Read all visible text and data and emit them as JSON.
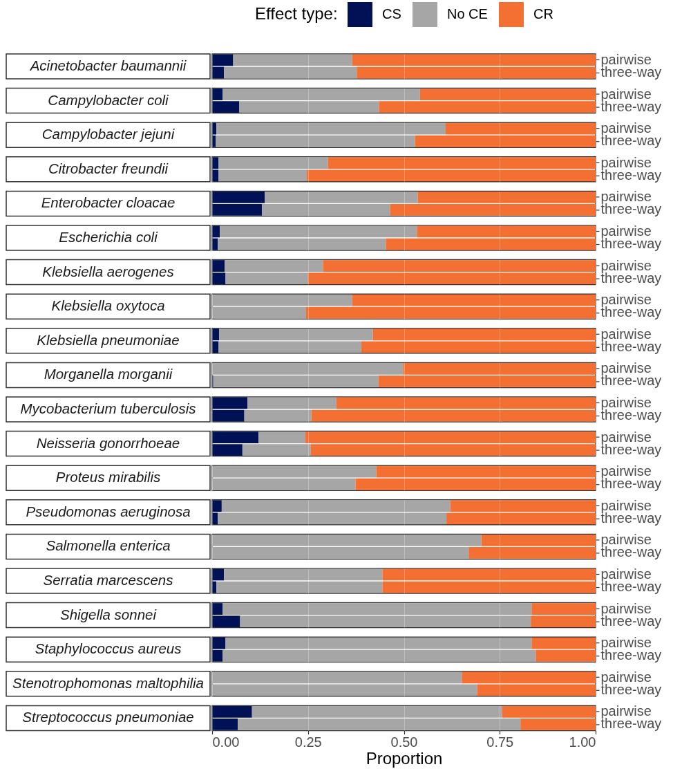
{
  "chart_data": [
    {
      "type": "bar",
      "orientation": "horizontal",
      "stacked": true,
      "title": "Acinetobacter baumannii",
      "categories": [
        "pairwise",
        "three-way"
      ],
      "series": [
        {
          "name": "CS",
          "color": "#001255",
          "values": [
            0.055,
            0.031
          ]
        },
        {
          "name": "No CE",
          "color": "#a6a6a6",
          "values": [
            0.31,
            0.346
          ]
        },
        {
          "name": "CR",
          "color": "#f36f32",
          "values": [
            0.635,
            0.623
          ]
        }
      ],
      "xlim": [
        0,
        1
      ],
      "xticks": [
        0,
        0.25,
        0.5,
        0.75,
        1
      ],
      "grid": "x",
      "tick_labels": "y",
      "legend": "top",
      "legend_title": "Effect type:"
    },
    {
      "type": "bar",
      "orientation": "horizontal",
      "stacked": true,
      "title": "Campylobacter coli",
      "categories": [
        "pairwise",
        "three-way"
      ],
      "series": [
        {
          "color": "#001255",
          "values": [
            0.027,
            0.071
          ]
        },
        {
          "color": "#a6a6a6",
          "values": [
            0.515,
            0.364
          ]
        },
        {
          "color": "#f36f32",
          "values": [
            0.458,
            0.565
          ]
        }
      ],
      "xlim": [
        0,
        1
      ],
      "xticks": [
        0,
        0.25,
        0.5,
        0.75,
        1
      ],
      "grid": "x",
      "tick_labels": "y"
    },
    {
      "type": "bar",
      "orientation": "horizontal",
      "stacked": true,
      "title": "Campylobacter jejuni",
      "categories": [
        "pairwise",
        "three-way"
      ],
      "series": [
        {
          "color": "#001255",
          "values": [
            0.011,
            0.009
          ]
        },
        {
          "color": "#a6a6a6",
          "values": [
            0.598,
            0.52
          ]
        },
        {
          "color": "#f36f32",
          "values": [
            0.391,
            0.471
          ]
        }
      ],
      "xlim": [
        0,
        1
      ],
      "xticks": [
        0,
        0.25,
        0.5,
        0.75,
        1
      ],
      "grid": "x",
      "tick_labels": "y"
    },
    {
      "type": "bar",
      "orientation": "horizontal",
      "stacked": true,
      "title": "Citrobacter freundii",
      "categories": [
        "pairwise",
        "three-way"
      ],
      "series": [
        {
          "color": "#001255",
          "values": [
            0.017,
            0.017
          ]
        },
        {
          "color": "#a6a6a6",
          "values": [
            0.285,
            0.23
          ]
        },
        {
          "color": "#f36f32",
          "values": [
            0.698,
            0.753
          ]
        }
      ],
      "xlim": [
        0,
        1
      ],
      "xticks": [
        0,
        0.25,
        0.5,
        0.75,
        1
      ],
      "grid": "x",
      "tick_labels": "y"
    },
    {
      "type": "bar",
      "orientation": "horizontal",
      "stacked": true,
      "title": "Enterobacter cloacae",
      "categories": [
        "pairwise",
        "three-way"
      ],
      "series": [
        {
          "color": "#001255",
          "values": [
            0.137,
            0.13
          ]
        },
        {
          "color": "#a6a6a6",
          "values": [
            0.399,
            0.334
          ]
        },
        {
          "color": "#f36f32",
          "values": [
            0.464,
            0.536
          ]
        }
      ],
      "xlim": [
        0,
        1
      ],
      "xticks": [
        0,
        0.25,
        0.5,
        0.75,
        1
      ],
      "grid": "x",
      "tick_labels": "y"
    },
    {
      "type": "bar",
      "orientation": "horizontal",
      "stacked": true,
      "title": "Escherichia coli",
      "categories": [
        "pairwise",
        "three-way"
      ],
      "series": [
        {
          "color": "#001255",
          "values": [
            0.02,
            0.015
          ]
        },
        {
          "color": "#a6a6a6",
          "values": [
            0.514,
            0.438
          ]
        },
        {
          "color": "#f36f32",
          "values": [
            0.466,
            0.547
          ]
        }
      ],
      "xlim": [
        0,
        1
      ],
      "xticks": [
        0,
        0.25,
        0.5,
        0.75,
        1
      ],
      "grid": "x",
      "tick_labels": "y"
    },
    {
      "type": "bar",
      "orientation": "horizontal",
      "stacked": true,
      "title": "Klebsiella aerogenes",
      "categories": [
        "pairwise",
        "three-way"
      ],
      "series": [
        {
          "color": "#001255",
          "values": [
            0.033,
            0.035
          ]
        },
        {
          "color": "#a6a6a6",
          "values": [
            0.256,
            0.215
          ]
        },
        {
          "color": "#f36f32",
          "values": [
            0.711,
            0.75
          ]
        }
      ],
      "xlim": [
        0,
        1
      ],
      "xticks": [
        0,
        0.25,
        0.5,
        0.75,
        1
      ],
      "grid": "x",
      "tick_labels": "y"
    },
    {
      "type": "bar",
      "orientation": "horizontal",
      "stacked": true,
      "title": "Klebsiella oxytoca",
      "categories": [
        "pairwise",
        "three-way"
      ],
      "series": [
        {
          "color": "#001255",
          "values": [
            0,
            0
          ]
        },
        {
          "color": "#a6a6a6",
          "values": [
            0.365,
            0.245
          ]
        },
        {
          "color": "#f36f32",
          "values": [
            0.635,
            0.755
          ]
        }
      ],
      "xlim": [
        0,
        1
      ],
      "xticks": [
        0,
        0.25,
        0.5,
        0.75,
        1
      ],
      "grid": "x",
      "tick_labels": "y"
    },
    {
      "type": "bar",
      "orientation": "horizontal",
      "stacked": true,
      "title": "Klebsiella pneumoniae",
      "categories": [
        "pairwise",
        "three-way"
      ],
      "series": [
        {
          "color": "#001255",
          "values": [
            0.018,
            0.017
          ]
        },
        {
          "color": "#a6a6a6",
          "values": [
            0.401,
            0.372
          ]
        },
        {
          "color": "#f36f32",
          "values": [
            0.581,
            0.611
          ]
        }
      ],
      "xlim": [
        0,
        1
      ],
      "xticks": [
        0,
        0.25,
        0.5,
        0.75,
        1
      ],
      "grid": "x",
      "tick_labels": "y"
    },
    {
      "type": "bar",
      "orientation": "horizontal",
      "stacked": true,
      "title": "Morganella morganii",
      "categories": [
        "pairwise",
        "three-way"
      ],
      "series": [
        {
          "color": "#001255",
          "values": [
            0,
            0.003
          ]
        },
        {
          "color": "#a6a6a6",
          "values": [
            0.498,
            0.431
          ]
        },
        {
          "color": "#f36f32",
          "values": [
            0.502,
            0.566
          ]
        }
      ],
      "xlim": [
        0,
        1
      ],
      "xticks": [
        0,
        0.25,
        0.5,
        0.75,
        1
      ],
      "grid": "x",
      "tick_labels": "y"
    },
    {
      "type": "bar",
      "orientation": "horizontal",
      "stacked": true,
      "title": "Mycobacterium tuberculosis",
      "categories": [
        "pairwise",
        "three-way"
      ],
      "series": [
        {
          "color": "#001255",
          "values": [
            0.092,
            0.084
          ]
        },
        {
          "color": "#a6a6a6",
          "values": [
            0.232,
            0.175
          ]
        },
        {
          "color": "#f36f32",
          "values": [
            0.676,
            0.741
          ]
        }
      ],
      "xlim": [
        0,
        1
      ],
      "xticks": [
        0,
        0.25,
        0.5,
        0.75,
        1
      ],
      "grid": "x",
      "tick_labels": "y"
    },
    {
      "type": "bar",
      "orientation": "horizontal",
      "stacked": true,
      "title": "Neisseria gonorrhoeae",
      "categories": [
        "pairwise",
        "three-way"
      ],
      "series": [
        {
          "color": "#001255",
          "values": [
            0.121,
            0.079
          ]
        },
        {
          "color": "#a6a6a6",
          "values": [
            0.122,
            0.178
          ]
        },
        {
          "color": "#f36f32",
          "values": [
            0.757,
            0.743
          ]
        }
      ],
      "xlim": [
        0,
        1
      ],
      "xticks": [
        0,
        0.25,
        0.5,
        0.75,
        1
      ],
      "grid": "x",
      "tick_labels": "y"
    },
    {
      "type": "bar",
      "orientation": "horizontal",
      "stacked": true,
      "title": "Proteus mirabilis",
      "categories": [
        "pairwise",
        "three-way"
      ],
      "series": [
        {
          "color": "#001255",
          "values": [
            0,
            0
          ]
        },
        {
          "color": "#a6a6a6",
          "values": [
            0.428,
            0.374
          ]
        },
        {
          "color": "#f36f32",
          "values": [
            0.572,
            0.626
          ]
        }
      ],
      "xlim": [
        0,
        1
      ],
      "xticks": [
        0,
        0.25,
        0.5,
        0.75,
        1
      ],
      "grid": "x",
      "tick_labels": "y"
    },
    {
      "type": "bar",
      "orientation": "horizontal",
      "stacked": true,
      "title": "Pseudomonas aeruginosa",
      "categories": [
        "pairwise",
        "three-way"
      ],
      "series": [
        {
          "color": "#001255",
          "values": [
            0.025,
            0.015
          ]
        },
        {
          "color": "#a6a6a6",
          "values": [
            0.596,
            0.596
          ]
        },
        {
          "color": "#f36f32",
          "values": [
            0.379,
            0.389
          ]
        }
      ],
      "xlim": [
        0,
        1
      ],
      "xticks": [
        0,
        0.25,
        0.5,
        0.75,
        1
      ],
      "grid": "x",
      "tick_labels": "y"
    },
    {
      "type": "bar",
      "orientation": "horizontal",
      "stacked": true,
      "title": "Salmonella enterica",
      "categories": [
        "pairwise",
        "three-way"
      ],
      "series": [
        {
          "color": "#001255",
          "values": [
            0,
            0
          ]
        },
        {
          "color": "#a6a6a6",
          "values": [
            0.702,
            0.669
          ]
        },
        {
          "color": "#f36f32",
          "values": [
            0.298,
            0.331
          ]
        }
      ],
      "xlim": [
        0,
        1
      ],
      "xticks": [
        0,
        0.25,
        0.5,
        0.75,
        1
      ],
      "grid": "x",
      "tick_labels": "y"
    },
    {
      "type": "bar",
      "orientation": "horizontal",
      "stacked": true,
      "title": "Serratia marcescens",
      "categories": [
        "pairwise",
        "three-way"
      ],
      "series": [
        {
          "color": "#001255",
          "values": [
            0.031,
            0.011
          ]
        },
        {
          "color": "#a6a6a6",
          "values": [
            0.413,
            0.433
          ]
        },
        {
          "color": "#f36f32",
          "values": [
            0.556,
            0.556
          ]
        }
      ],
      "xlim": [
        0,
        1
      ],
      "xticks": [
        0,
        0.25,
        0.5,
        0.75,
        1
      ],
      "grid": "x",
      "tick_labels": "y"
    },
    {
      "type": "bar",
      "orientation": "horizontal",
      "stacked": true,
      "title": "Shigella sonnei",
      "categories": [
        "pairwise",
        "three-way"
      ],
      "series": [
        {
          "color": "#001255",
          "values": [
            0.027,
            0.073
          ]
        },
        {
          "color": "#a6a6a6",
          "values": [
            0.806,
            0.758
          ]
        },
        {
          "color": "#f36f32",
          "values": [
            0.167,
            0.169
          ]
        }
      ],
      "xlim": [
        0,
        1
      ],
      "xticks": [
        0,
        0.25,
        0.5,
        0.75,
        1
      ],
      "grid": "x",
      "tick_labels": "y"
    },
    {
      "type": "bar",
      "orientation": "horizontal",
      "stacked": true,
      "title": "Staphylococcus aureus",
      "categories": [
        "pairwise",
        "three-way"
      ],
      "series": [
        {
          "color": "#001255",
          "values": [
            0.035,
            0.027
          ]
        },
        {
          "color": "#a6a6a6",
          "values": [
            0.798,
            0.817
          ]
        },
        {
          "color": "#f36f32",
          "values": [
            0.167,
            0.156
          ]
        }
      ],
      "xlim": [
        0,
        1
      ],
      "xticks": [
        0,
        0.25,
        0.5,
        0.75,
        1
      ],
      "grid": "x",
      "tick_labels": "y"
    },
    {
      "type": "bar",
      "orientation": "horizontal",
      "stacked": true,
      "title": "Stenotrophomonas maltophilia",
      "categories": [
        "pairwise",
        "three-way"
      ],
      "series": [
        {
          "color": "#001255",
          "values": [
            0,
            0
          ]
        },
        {
          "color": "#a6a6a6",
          "values": [
            0.651,
            0.691
          ]
        },
        {
          "color": "#f36f32",
          "values": [
            0.349,
            0.309
          ]
        }
      ],
      "xlim": [
        0,
        1
      ],
      "xticks": [
        0,
        0.25,
        0.5,
        0.75,
        1
      ],
      "grid": "x",
      "tick_labels": "y"
    },
    {
      "type": "bar",
      "orientation": "horizontal",
      "stacked": true,
      "title": "Streptococcus pneumoniae",
      "categories": [
        "pairwise",
        "three-way"
      ],
      "series": [
        {
          "color": "#001255",
          "values": [
            0.104,
            0.067
          ]
        },
        {
          "color": "#a6a6a6",
          "values": [
            0.652,
            0.737
          ]
        },
        {
          "color": "#f36f32",
          "values": [
            0.244,
            0.196
          ]
        }
      ],
      "xlim": [
        0,
        1
      ],
      "xticks": [
        {
          "value": 0,
          "label": "0.00"
        },
        {
          "value": 0.25,
          "label": "0.25"
        },
        {
          "value": 0.5,
          "label": "0.50"
        },
        {
          "value": 0.75,
          "label": "0.75"
        },
        {
          "value": 1,
          "label": "1.00"
        }
      ],
      "grid": "x",
      "xlabel": "Proportion"
    }
  ]
}
